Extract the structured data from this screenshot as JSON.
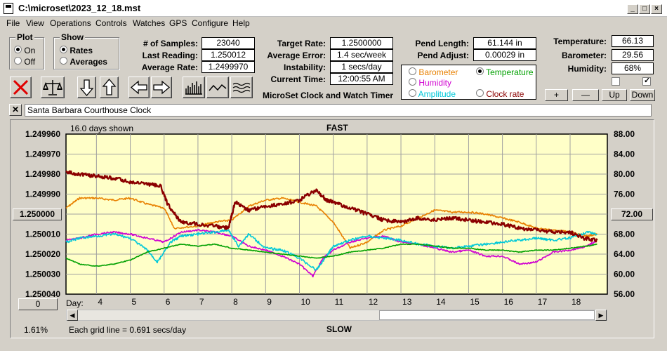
{
  "window": {
    "title": "C:\\microset\\2023_12_18.mst"
  },
  "menu": [
    "File",
    "View",
    "Operations",
    "Controls",
    "Watches",
    "GPS",
    "Configure",
    "Help"
  ],
  "plot_group": {
    "caption": "Plot",
    "options": [
      "On",
      "Off"
    ],
    "selected": "On"
  },
  "show_group": {
    "caption": "Show",
    "options": [
      "Rates",
      "Averages"
    ],
    "selected": "Rates"
  },
  "stats": {
    "samples_label": "# of Samples:",
    "samples": "23040",
    "last_label": "Last Reading:",
    "last": "1.250012",
    "avg_label": "Average Rate:",
    "avg": "1.2499970",
    "target_label": "Target Rate:",
    "target": "1.2500000",
    "avgerr_label": "Average Error:",
    "avgerr": "1.4 sec/week",
    "instab_label": "Instability:",
    "instab": "1 secs/day",
    "time_label": "Current Time:",
    "time": "12:00:55 AM",
    "pendlen_label": "Pend Length:",
    "pendlen": "61.144 in",
    "pendadj_label": "Pend Adjust:",
    "pendadj": "0.00029 in",
    "temp_label": "Temperature:",
    "temp": "66.13",
    "baro_label": "Barometer:",
    "baro": "29.56",
    "hum_label": "Humidity:",
    "hum": "68%"
  },
  "app_name": "MicroSet Clock and Watch Timer",
  "legend": {
    "items": [
      {
        "label": "Barometer",
        "color": "#e88000",
        "selected": false
      },
      {
        "label": "Temperature",
        "color": "#00a000",
        "selected": true
      },
      {
        "label": "Humidity",
        "color": "#d000d0",
        "selected": false
      },
      {
        "label": "Amplitude",
        "color": "#00c8d8",
        "selected": false
      },
      {
        "label": "Clock rate",
        "color": "#8b0000",
        "selected": false
      }
    ]
  },
  "scale_buttons": [
    "+",
    "—",
    "Up",
    "Down"
  ],
  "clock_name": "Santa Barbara Courthouse Clock",
  "plot": {
    "days_shown": "16.0 days shown",
    "top_label": "FAST",
    "bottom_label": "SLOW",
    "grid_note": "Each grid line = 0.691 secs/day",
    "left_percent": "1.61%",
    "day_label": "Day:",
    "left_center_btn": "1.250000",
    "right_center_btn": "72.00",
    "zero_btn": "0"
  },
  "chart_data": {
    "type": "line",
    "x_ticks": [
      "4",
      "5",
      "6",
      "7",
      "8",
      "9",
      "10",
      "11",
      "12",
      "13",
      "14",
      "15",
      "16",
      "17",
      "18"
    ],
    "y_left_ticks": [
      "1.249960",
      "1.249970",
      "1.249980",
      "1.249990",
      "1.250000",
      "1.250010",
      "1.250020",
      "1.250030",
      "1.250040"
    ],
    "y_right_ticks": [
      "88.00",
      "84.00",
      "80.00",
      "76.00",
      "72.00",
      "68.00",
      "64.00",
      "60.00",
      "56.00"
    ],
    "xlim": [
      3.1,
      19.1
    ],
    "y_left_lim": [
      1.24996,
      1.25004
    ],
    "y_right_lim": [
      56,
      88
    ],
    "series": [
      {
        "name": "Clock rate",
        "color": "#8b0000",
        "axis": "left",
        "points": [
          [
            3.1,
            1.249979
          ],
          [
            3.5,
            1.24998
          ],
          [
            4,
            1.249981
          ],
          [
            4.5,
            1.249982
          ],
          [
            5,
            1.249984
          ],
          [
            5.5,
            1.249985
          ],
          [
            5.9,
            1.249986
          ],
          [
            6.1,
            1.249995
          ],
          [
            6.5,
            1.250004
          ],
          [
            7,
            1.250005
          ],
          [
            7.5,
            1.250006
          ],
          [
            7.9,
            1.250007
          ],
          [
            8.1,
            1.249994
          ],
          [
            8.5,
            1.249998
          ],
          [
            9,
            1.249996
          ],
          [
            9.5,
            1.249995
          ],
          [
            10,
            1.249993
          ],
          [
            10.5,
            1.249988
          ],
          [
            10.8,
            1.249993
          ],
          [
            11,
            1.249994
          ],
          [
            11.5,
            1.249997
          ],
          [
            12,
            1.25
          ],
          [
            12.5,
            1.250003
          ],
          [
            13,
            1.250004
          ],
          [
            13.5,
            1.250002
          ],
          [
            14,
            1.250003
          ],
          [
            14.5,
            1.250002
          ],
          [
            15,
            1.250003
          ],
          [
            15.5,
            1.250004
          ],
          [
            16,
            1.250005
          ],
          [
            16.5,
            1.250007
          ],
          [
            17,
            1.250008
          ],
          [
            17.5,
            1.250009
          ],
          [
            18,
            1.250009
          ],
          [
            18.4,
            1.250012
          ],
          [
            18.8,
            1.250013
          ]
        ]
      },
      {
        "name": "Barometer",
        "color": "#e88000",
        "axis": "left",
        "points": [
          [
            3.1,
            1.249997
          ],
          [
            3.5,
            1.249992
          ],
          [
            4,
            1.249992
          ],
          [
            4.5,
            1.249993
          ],
          [
            5,
            1.249992
          ],
          [
            5.5,
            1.249995
          ],
          [
            6,
            1.249997
          ],
          [
            6.3,
            1.250007
          ],
          [
            7,
            1.250006
          ],
          [
            7.5,
            1.250004
          ],
          [
            8,
            1.250003
          ],
          [
            8.5,
            1.249996
          ],
          [
            9,
            1.249993
          ],
          [
            9.5,
            1.249992
          ],
          [
            10,
            1.249994
          ],
          [
            10.5,
            1.249996
          ],
          [
            11,
            1.250004
          ],
          [
            11.5,
            1.250017
          ],
          [
            12,
            1.250014
          ],
          [
            12.5,
            1.250008
          ],
          [
            13,
            1.250006
          ],
          [
            13.5,
            1.250002
          ],
          [
            14,
            1.249998
          ],
          [
            14.5,
            1.249999
          ],
          [
            15,
            1.249999
          ],
          [
            15.5,
            1.25
          ],
          [
            16,
            1.250002
          ],
          [
            16.5,
            1.250004
          ],
          [
            17,
            1.250007
          ],
          [
            17.5,
            1.250008
          ],
          [
            18,
            1.250009
          ],
          [
            18.5,
            1.250011
          ],
          [
            18.8,
            1.25001
          ]
        ]
      },
      {
        "name": "Humidity",
        "color": "#d000d0",
        "axis": "left",
        "points": [
          [
            3.1,
            1.250013
          ],
          [
            3.5,
            1.250012
          ],
          [
            4,
            1.25001
          ],
          [
            4.5,
            1.250009
          ],
          [
            5,
            1.25001
          ],
          [
            5.5,
            1.250012
          ],
          [
            6,
            1.250014
          ],
          [
            6.5,
            1.250009
          ],
          [
            7,
            1.250008
          ],
          [
            7.5,
            1.250009
          ],
          [
            8,
            1.250011
          ],
          [
            8.5,
            1.250016
          ],
          [
            9,
            1.250018
          ],
          [
            9.5,
            1.250021
          ],
          [
            10,
            1.250025
          ],
          [
            10.4,
            1.250031
          ],
          [
            10.7,
            1.250022
          ],
          [
            11,
            1.250018
          ],
          [
            11.5,
            1.250014
          ],
          [
            12,
            1.250012
          ],
          [
            12.5,
            1.250011
          ],
          [
            13,
            1.250014
          ],
          [
            13.5,
            1.250015
          ],
          [
            14,
            1.250017
          ],
          [
            14.5,
            1.250019
          ],
          [
            15,
            1.250018
          ],
          [
            15.5,
            1.250021
          ],
          [
            16,
            1.250021
          ],
          [
            16.5,
            1.250025
          ],
          [
            17,
            1.250024
          ],
          [
            17.5,
            1.250019
          ],
          [
            18,
            1.250018
          ],
          [
            18.5,
            1.250016
          ],
          [
            18.8,
            1.250013
          ]
        ]
      },
      {
        "name": "Amplitude",
        "color": "#00c8d8",
        "axis": "left",
        "points": [
          [
            3.1,
            1.250014
          ],
          [
            3.5,
            1.250012
          ],
          [
            4,
            1.250011
          ],
          [
            4.5,
            1.25001
          ],
          [
            5,
            1.250012
          ],
          [
            5.5,
            1.250018
          ],
          [
            5.8,
            1.250024
          ],
          [
            6.2,
            1.250014
          ],
          [
            6.5,
            1.250011
          ],
          [
            7,
            1.25001
          ],
          [
            7.5,
            1.250009
          ],
          [
            7.9,
            1.250008
          ],
          [
            8.2,
            1.250016
          ],
          [
            8.5,
            1.25001
          ],
          [
            9,
            1.250017
          ],
          [
            9.5,
            1.250018
          ],
          [
            10,
            1.250022
          ],
          [
            10.5,
            1.250028
          ],
          [
            10.8,
            1.250021
          ],
          [
            11,
            1.250016
          ],
          [
            11.5,
            1.250013
          ],
          [
            12,
            1.250011
          ],
          [
            12.5,
            1.250012
          ],
          [
            13,
            1.250013
          ],
          [
            13.5,
            1.250015
          ],
          [
            14,
            1.250016
          ],
          [
            14.5,
            1.250017
          ],
          [
            15,
            1.250016
          ],
          [
            15.5,
            1.250015
          ],
          [
            16,
            1.250014
          ],
          [
            16.5,
            1.250013
          ],
          [
            17,
            1.250012
          ],
          [
            17.5,
            1.250013
          ],
          [
            18,
            1.250012
          ],
          [
            18.5,
            1.250009
          ],
          [
            18.8,
            1.25001
          ]
        ]
      },
      {
        "name": "Temperature",
        "color": "#00a000",
        "axis": "left",
        "points": [
          [
            3.1,
            1.250022
          ],
          [
            3.5,
            1.250025
          ],
          [
            4,
            1.250026
          ],
          [
            4.5,
            1.250025
          ],
          [
            5,
            1.250023
          ],
          [
            5.5,
            1.250019
          ],
          [
            6,
            1.250017
          ],
          [
            6.5,
            1.250015
          ],
          [
            7,
            1.250016
          ],
          [
            7.5,
            1.250015
          ],
          [
            8,
            1.250017
          ],
          [
            8.5,
            1.250018
          ],
          [
            9,
            1.250019
          ],
          [
            9.5,
            1.25002
          ],
          [
            10,
            1.250021
          ],
          [
            10.5,
            1.250022
          ],
          [
            11,
            1.250021
          ],
          [
            11.5,
            1.250019
          ],
          [
            12,
            1.250018
          ],
          [
            12.5,
            1.250017
          ],
          [
            13,
            1.250015
          ],
          [
            13.5,
            1.250015
          ],
          [
            14,
            1.250016
          ],
          [
            14.5,
            1.250017
          ],
          [
            15,
            1.250017
          ],
          [
            15.5,
            1.250018
          ],
          [
            16,
            1.250018
          ],
          [
            16.5,
            1.250019
          ],
          [
            17,
            1.250018
          ],
          [
            17.5,
            1.250018
          ],
          [
            18,
            1.250017
          ],
          [
            18.5,
            1.250016
          ],
          [
            18.8,
            1.250015
          ]
        ]
      }
    ]
  }
}
